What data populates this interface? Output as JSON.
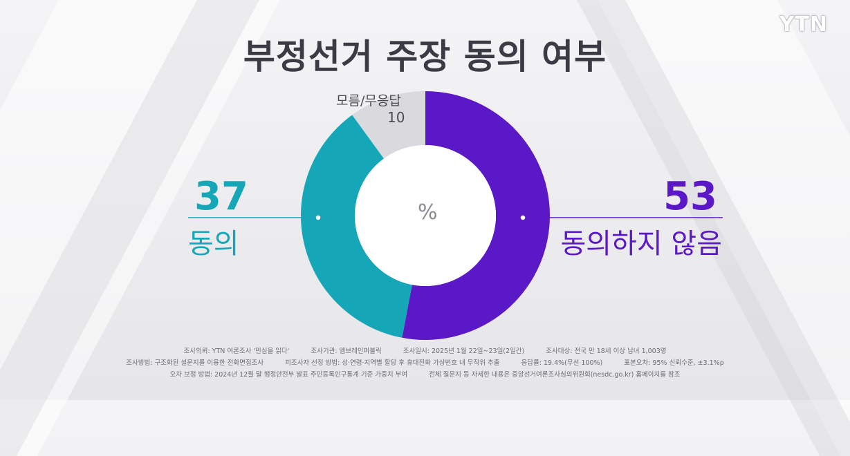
{
  "logo": "YTN",
  "title": "부정선거 주장 동의 여부",
  "chart_data": {
    "type": "pie",
    "title": "부정선거 주장 동의 여부",
    "unit": "%",
    "slices": [
      {
        "label": "동의하지 않음",
        "value": 53,
        "color": "#5b18c6"
      },
      {
        "label": "동의",
        "value": 37,
        "color": "#15a7b8"
      },
      {
        "label": "모름/무응답",
        "value": 10,
        "color": "#d9d9de"
      }
    ]
  },
  "labels": {
    "agree_value": "37",
    "agree_label": "동의",
    "disagree_value": "53",
    "disagree_label": "동의하지 않음",
    "unknown_label": "모름/무응답",
    "unknown_value": "10",
    "center_unit": "%"
  },
  "notes": {
    "line1": [
      "조사의뢰: YTN 여론조사 '민심을 읽다'",
      "조사기관: 엠브레인퍼블릭",
      "조사일시: 2025년 1월 22일~23일(2일간)",
      "조사대상: 전국 만 18세 이상 남녀 1,003명"
    ],
    "line2": [
      "조사방법: 구조화된 설문지를 이용한 전화면접조사",
      "피조사자 선정 방법: 성·연령·지역별 할당 후 휴대전화 가상번호 내 무작위 추출",
      "응답률: 19.4%(무선 100%)",
      "표본오차: 95% 신뢰수준, ±3.1%p"
    ],
    "line3": [
      "오차 보정 방법: 2024년 12월 말 행정안전부 발표 주민등록인구통계 기준 가중치 부여",
      "전체 질문지 등 자세한 내용은 중앙선거여론조사심의위원회(nesdc.go.kr) 홈페이지를 참조"
    ]
  }
}
